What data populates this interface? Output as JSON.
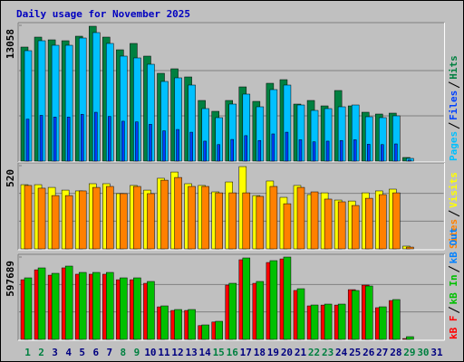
{
  "chart_data": [
    {
      "type": "bar",
      "title": "Daily usage for November 2025",
      "ylim": [
        0,
        13058
      ],
      "yticks": [
        13058
      ],
      "series": [
        {
          "name": "Pages",
          "color": "#00c0ff",
          "values": [
            10620,
            11578,
            11142,
            11142,
            11839,
            12361,
            11317,
            10098,
            9924,
            9314,
            7660,
            8009,
            7312,
            5049,
            4179,
            5484,
            6442,
            5223,
            6877,
            7312,
            5397,
            4875,
            5049,
            5223,
            5397,
            4265,
            4179,
            4353,
            261,
            null,
            null
          ]
        },
        {
          "name": "Files",
          "color": "#0040ff",
          "values": [
            4036,
            4400,
            4234,
            4234,
            4499,
            4697,
            4300,
            3837,
            3771,
            3539,
            2911,
            3043,
            2779,
            1919,
            1588,
            2084,
            2448,
            1985,
            2613,
            2779,
            2051,
            1853,
            1919,
            1985,
            2051,
            1621,
            1588,
            1654,
            99,
            null,
            null
          ]
        },
        {
          "name": "Hits",
          "color": "#008040",
          "values": [
            10969,
            11926,
            11665,
            11578,
            12013,
            12971,
            11926,
            10707,
            11317,
            10098,
            8444,
            8879,
            8096,
            5832,
            4788,
            5832,
            7138,
            5745,
            7486,
            7834,
            5484,
            5832,
            5310,
            6790,
            5310,
            4701,
            4527,
            4614,
            348,
            null,
            null
          ]
        }
      ]
    },
    {
      "type": "bar",
      "ylim": [
        0,
        520
      ],
      "yticks": [
        520
      ],
      "series": [
        {
          "name": "Sites",
          "color": "#ff8000",
          "values": [
            396,
            379,
            333,
            333,
            362,
            384,
            390,
            345,
            390,
            345,
            429,
            446,
            390,
            390,
            350,
            350,
            350,
            328,
            390,
            282,
            384,
            356,
            311,
            294,
            271,
            316,
            339,
            350,
            11,
            null,
            null
          ]
        },
        {
          "name": "Visits",
          "color": "#ffff00",
          "values": [
            401,
            401,
            384,
            367,
            362,
            407,
            407,
            345,
            396,
            367,
            441,
            480,
            407,
            396,
            356,
            418,
            514,
            333,
            424,
            322,
            396,
            339,
            350,
            305,
            299,
            350,
            362,
            373,
            17,
            null,
            null
          ]
        }
      ]
    },
    {
      "type": "bar",
      "ylim": [
        0,
        597689
      ],
      "yticks": [
        597689
      ],
      "categories": [
        "1",
        "2",
        "3",
        "4",
        "5",
        "6",
        "7",
        "8",
        "9",
        "10",
        "11",
        "12",
        "13",
        "14",
        "15",
        "16",
        "17",
        "18",
        "19",
        "20",
        "21",
        "22",
        "23",
        "24",
        "25",
        "26",
        "27",
        "28",
        "29",
        "30",
        "31"
      ],
      "category_colors": [
        "#008040",
        "#008040",
        "#000080",
        "#000080",
        "#000080",
        "#000080",
        "#000080",
        "#008040",
        "#008040",
        "#000080",
        "#000080",
        "#000080",
        "#000080",
        "#000080",
        "#008040",
        "#008040",
        "#000080",
        "#000080",
        "#000080",
        "#000080",
        "#000080",
        "#008040",
        "#008040",
        "#000080",
        "#000080",
        "#000080",
        "#000080",
        "#000080",
        "#008040",
        "#008040",
        "#000080"
      ],
      "series": [
        {
          "name": "kB F",
          "color": "#ff0000",
          "values": [
            433000,
            505000,
            466000,
            519000,
            473000,
            473000,
            473000,
            433000,
            433000,
            407000,
            236000,
            210000,
            210000,
            100000,
            126000,
            394000,
            578000,
            407000,
            558000,
            584000,
            355000,
            243000,
            249000,
            249000,
            361000,
            394000,
            230000,
            282000,
            6000,
            null,
            null
          ]
        },
        {
          "name": "kB In",
          "color": "#00c000",
          "values": [
            446624,
            518872,
            479464,
            532008,
            486032,
            486032,
            486032,
            446624,
            446624,
            420352,
            243016,
            216744,
            216744,
            105088,
            131360,
            407216,
            591120,
            420352,
            571416,
            597689,
            367808,
            249584,
            256152,
            256152,
            354672,
            387512,
            236448,
            288992,
            19704,
            null,
            null
          ]
        },
        {
          "name": "kB Out",
          "color": "#0080ff",
          "values": [
            null,
            null,
            null,
            null,
            null,
            null,
            null,
            null,
            null,
            null,
            null,
            null,
            null,
            null,
            null,
            null,
            null,
            null,
            null,
            null,
            null,
            null,
            null,
            null,
            null,
            null,
            null,
            null,
            null,
            null,
            null
          ]
        }
      ]
    }
  ]
}
